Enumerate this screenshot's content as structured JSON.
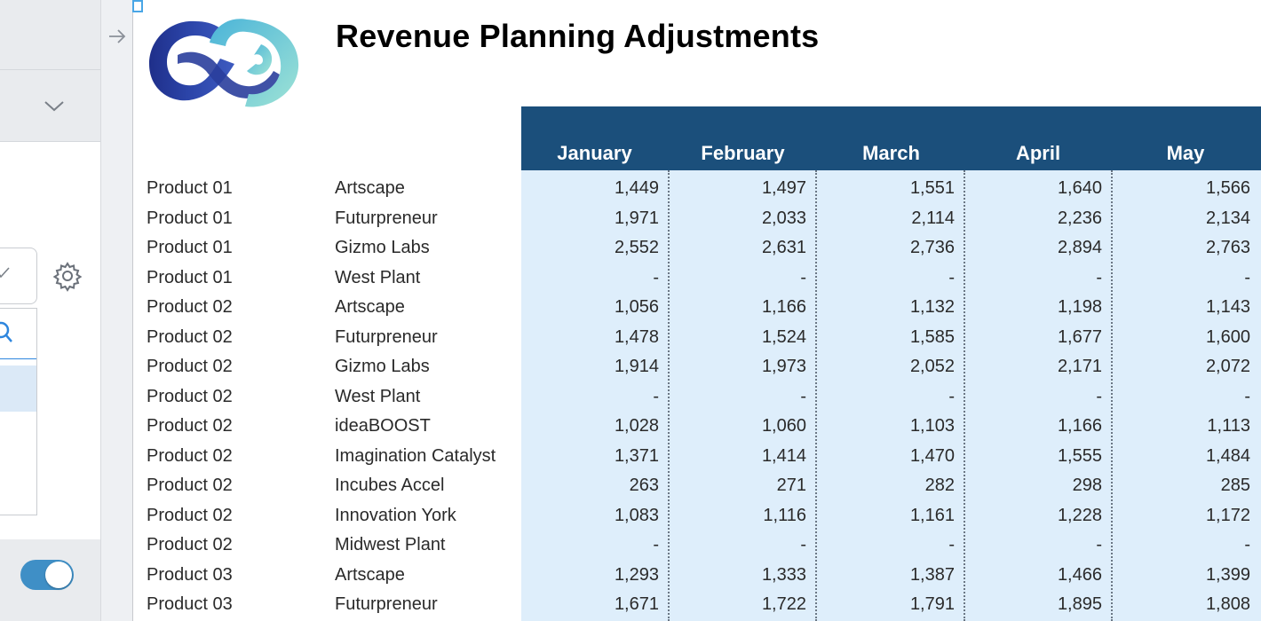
{
  "report": {
    "title": "Revenue Planning Adjustments"
  },
  "columns": [
    "January",
    "February",
    "March",
    "April",
    "May"
  ],
  "rows": [
    {
      "product": "Product 01",
      "entity": "Artscape",
      "values": [
        "1,449",
        "1,497",
        "1,551",
        "1,640",
        "1,566"
      ]
    },
    {
      "product": "Product 01",
      "entity": "Futurpreneur",
      "values": [
        "1,971",
        "2,033",
        "2,114",
        "2,236",
        "2,134"
      ]
    },
    {
      "product": "Product 01",
      "entity": "Gizmo Labs",
      "values": [
        "2,552",
        "2,631",
        "2,736",
        "2,894",
        "2,763"
      ]
    },
    {
      "product": "Product 01",
      "entity": "West Plant",
      "values": [
        "-",
        "-",
        "-",
        "-",
        "-"
      ]
    },
    {
      "product": "Product 02",
      "entity": "Artscape",
      "values": [
        "1,056",
        "1,166",
        "1,132",
        "1,198",
        "1,143"
      ]
    },
    {
      "product": "Product 02",
      "entity": "Futurpreneur",
      "values": [
        "1,478",
        "1,524",
        "1,585",
        "1,677",
        "1,600"
      ]
    },
    {
      "product": "Product 02",
      "entity": "Gizmo Labs",
      "values": [
        "1,914",
        "1,973",
        "2,052",
        "2,171",
        "2,072"
      ]
    },
    {
      "product": "Product 02",
      "entity": "West Plant",
      "values": [
        "-",
        "-",
        "-",
        "-",
        "-"
      ]
    },
    {
      "product": "Product 02",
      "entity": "ideaBOOST",
      "values": [
        "1,028",
        "1,060",
        "1,103",
        "1,166",
        "1,113"
      ]
    },
    {
      "product": "Product 02",
      "entity": "Imagination Catalyst",
      "values": [
        "1,371",
        "1,414",
        "1,470",
        "1,555",
        "1,484"
      ]
    },
    {
      "product": "Product 02",
      "entity": "Incubes Accel",
      "values": [
        "263",
        "271",
        "282",
        "298",
        "285"
      ]
    },
    {
      "product": "Product 02",
      "entity": "Innovation York",
      "values": [
        "1,083",
        "1,116",
        "1,161",
        "1,228",
        "1,172"
      ]
    },
    {
      "product": "Product 02",
      "entity": "Midwest Plant",
      "values": [
        "-",
        "-",
        "-",
        "-",
        "-"
      ]
    },
    {
      "product": "Product 03",
      "entity": "Artscape",
      "values": [
        "1,293",
        "1,333",
        "1,387",
        "1,466",
        "1,399"
      ]
    },
    {
      "product": "Product 03",
      "entity": "Futurpreneur",
      "values": [
        "1,671",
        "1,722",
        "1,791",
        "1,895",
        "1,808"
      ]
    }
  ],
  "icons": {
    "expand": "arrow-right-icon",
    "dropdown": "chevron-down-icon",
    "settings": "gear-icon",
    "search": "search-icon",
    "check": "check-icon"
  },
  "colors": {
    "header_band": "#1b4f7b",
    "data_background": "#deeefb",
    "toggle_on": "#3f8fc6"
  },
  "toggle": {
    "on": true
  }
}
